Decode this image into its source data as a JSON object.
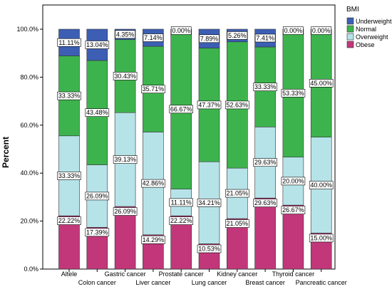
{
  "chart_data": {
    "type": "bar",
    "stacked": true,
    "percent": true,
    "ylabel": "Percent",
    "y_ticks": [
      "0.0%",
      "20.0%",
      "40.0%",
      "60.0%",
      "80.0%",
      "100.0%"
    ],
    "ylim": [
      0,
      100
    ],
    "legend": {
      "title": "BMI",
      "placement": "top-right"
    },
    "categories": [
      "Altele",
      "Colon cancer",
      "Gastric cancer",
      "Liver cancer",
      "Prostate cancer",
      "Lung cancer",
      "Kidney cancer",
      "Breast cancer",
      "Thyroid cancer",
      "Pancreatic cancer"
    ],
    "series": [
      {
        "name": "Obese",
        "color": "#c1377a",
        "values": [
          22.22,
          17.39,
          26.09,
          14.29,
          22.22,
          10.53,
          21.05,
          29.63,
          26.67,
          15.0
        ],
        "labels": [
          "22.22%",
          "17.39%",
          "26.09%",
          "14.29%",
          "22.22%",
          "10.53%",
          "21.05%",
          "29.63%",
          "26.67%",
          "15.00%"
        ]
      },
      {
        "name": "Overweight",
        "color": "#b6e3e8",
        "values": [
          33.33,
          26.09,
          39.13,
          42.86,
          11.11,
          34.21,
          21.05,
          29.63,
          20.0,
          40.0
        ],
        "labels": [
          "33.33%",
          "26.09%",
          "39.13%",
          "42.86%",
          "11.11%",
          "34.21%",
          "21.05%",
          "29.63%",
          "20.00%",
          "40.00%"
        ]
      },
      {
        "name": "Normal",
        "color": "#3db34d",
        "values": [
          33.33,
          43.48,
          30.43,
          35.71,
          66.67,
          47.37,
          52.63,
          33.33,
          53.33,
          45.0
        ],
        "labels": [
          "33.33%",
          "43.48%",
          "30.43%",
          "35.71%",
          "66.67%",
          "47.37%",
          "52.63%",
          "33.33%",
          "53.33%",
          "45.00%"
        ]
      },
      {
        "name": "Underweight",
        "color": "#3c5fb4",
        "values": [
          11.11,
          13.04,
          4.35,
          7.14,
          0.0,
          7.89,
          5.26,
          7.41,
          0.0,
          0.0
        ],
        "labels": [
          "11.11%",
          "13.04%",
          "4.35%",
          "7.14%",
          "0.00%",
          "7.89%",
          "5.26%",
          "7.41%",
          "0.00%",
          "0.00%"
        ]
      }
    ],
    "legend_order": [
      "Underweight",
      "Normal",
      "Overweight",
      "Obese"
    ],
    "grid": false
  }
}
